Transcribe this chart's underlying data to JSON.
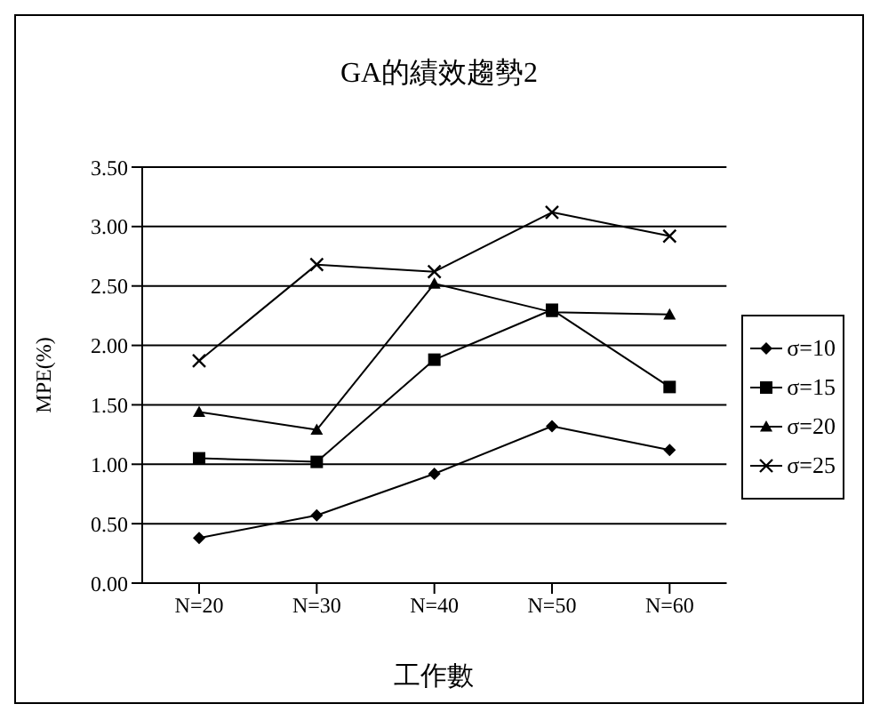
{
  "chart_data": {
    "type": "line",
    "title": "GA的績效趨勢2",
    "xlabel": "工作數",
    "ylabel": "MPE(%)",
    "categories": [
      "N=20",
      "N=30",
      "N=40",
      "N=50",
      "N=60"
    ],
    "series": [
      {
        "name": "σ=10",
        "color": "#000000",
        "marker": "diamond",
        "values": [
          0.38,
          0.57,
          0.92,
          1.32,
          1.12
        ]
      },
      {
        "name": "σ=15",
        "color": "#000000",
        "marker": "square",
        "values": [
          1.05,
          1.02,
          1.88,
          2.3,
          1.65
        ]
      },
      {
        "name": "σ=20",
        "color": "#000000",
        "marker": "triangle",
        "values": [
          1.44,
          1.29,
          2.52,
          2.28,
          2.26
        ]
      },
      {
        "name": "σ=25",
        "color": "#000000",
        "marker": "cross",
        "values": [
          1.87,
          2.68,
          2.62,
          3.12,
          2.92
        ]
      }
    ],
    "ylim": [
      0,
      3.5
    ],
    "yticks": [
      {
        "value": 0,
        "label": "0.00"
      },
      {
        "value": 0.5,
        "label": "0.50"
      },
      {
        "value": 1,
        "label": "1.00"
      },
      {
        "value": 1.5,
        "label": "1.50"
      },
      {
        "value": 2,
        "label": "2.00"
      },
      {
        "value": 2.5,
        "label": "2.50"
      },
      {
        "value": 3,
        "label": "3.00"
      },
      {
        "value": 3.5,
        "label": "3.50"
      }
    ],
    "grid": "y",
    "legend": "right",
    "line_style": "solid"
  }
}
